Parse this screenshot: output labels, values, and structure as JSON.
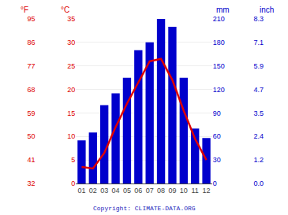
{
  "chart_data": {
    "type": "bar",
    "categories": [
      "01",
      "02",
      "03",
      "04",
      "05",
      "06",
      "07",
      "08",
      "09",
      "10",
      "11",
      "12"
    ],
    "series": [
      {
        "type": "bar",
        "color": "#0000cc",
        "values": [
          55,
          65,
          100,
          115,
          135,
          170,
          180,
          210,
          200,
          135,
          70,
          58
        ]
      },
      {
        "type": "line",
        "color": "#dd0000",
        "axis": "y2",
        "values": [
          3.5,
          3.2,
          6.5,
          12.0,
          17.0,
          21.5,
          26.0,
          26.5,
          22.0,
          15.5,
          9.5,
          5.0
        ]
      }
    ],
    "ylabel": "mm",
    "ylim": [
      0,
      210
    ],
    "yticks": [
      0,
      30,
      60,
      90,
      120,
      150,
      180,
      210
    ],
    "y2label": "°C",
    "y2lim": [
      0,
      35
    ],
    "y2ticks": [
      0,
      5,
      10,
      15,
      20,
      25,
      30,
      35
    ],
    "y3label": "°F",
    "y3lim": [
      0,
      35
    ],
    "y3ticks": [
      {
        "value": 0,
        "label": "32"
      },
      {
        "value": 5,
        "label": "41"
      },
      {
        "value": 10,
        "label": "50"
      },
      {
        "value": 15,
        "label": "59"
      },
      {
        "value": 20,
        "label": "68"
      },
      {
        "value": 25,
        "label": "77"
      },
      {
        "value": 30,
        "label": "86"
      },
      {
        "value": 35,
        "label": "95"
      }
    ],
    "y4label": "inch",
    "y4lim": [
      0,
      210
    ],
    "y4ticks": [
      {
        "value": 0,
        "label": "0.0"
      },
      {
        "value": 30,
        "label": "1.2"
      },
      {
        "value": 60,
        "label": "2.4"
      },
      {
        "value": 90,
        "label": "3.5"
      },
      {
        "value": 120,
        "label": "4.7"
      },
      {
        "value": 150,
        "label": "5.9"
      },
      {
        "value": 180,
        "label": "7.1"
      },
      {
        "value": 210,
        "label": "8.3"
      }
    ],
    "annotations": [
      {
        "text": "Copyright: CLIMATE-DATA.ORG",
        "color": "#2222bb"
      }
    ],
    "grid": true
  }
}
